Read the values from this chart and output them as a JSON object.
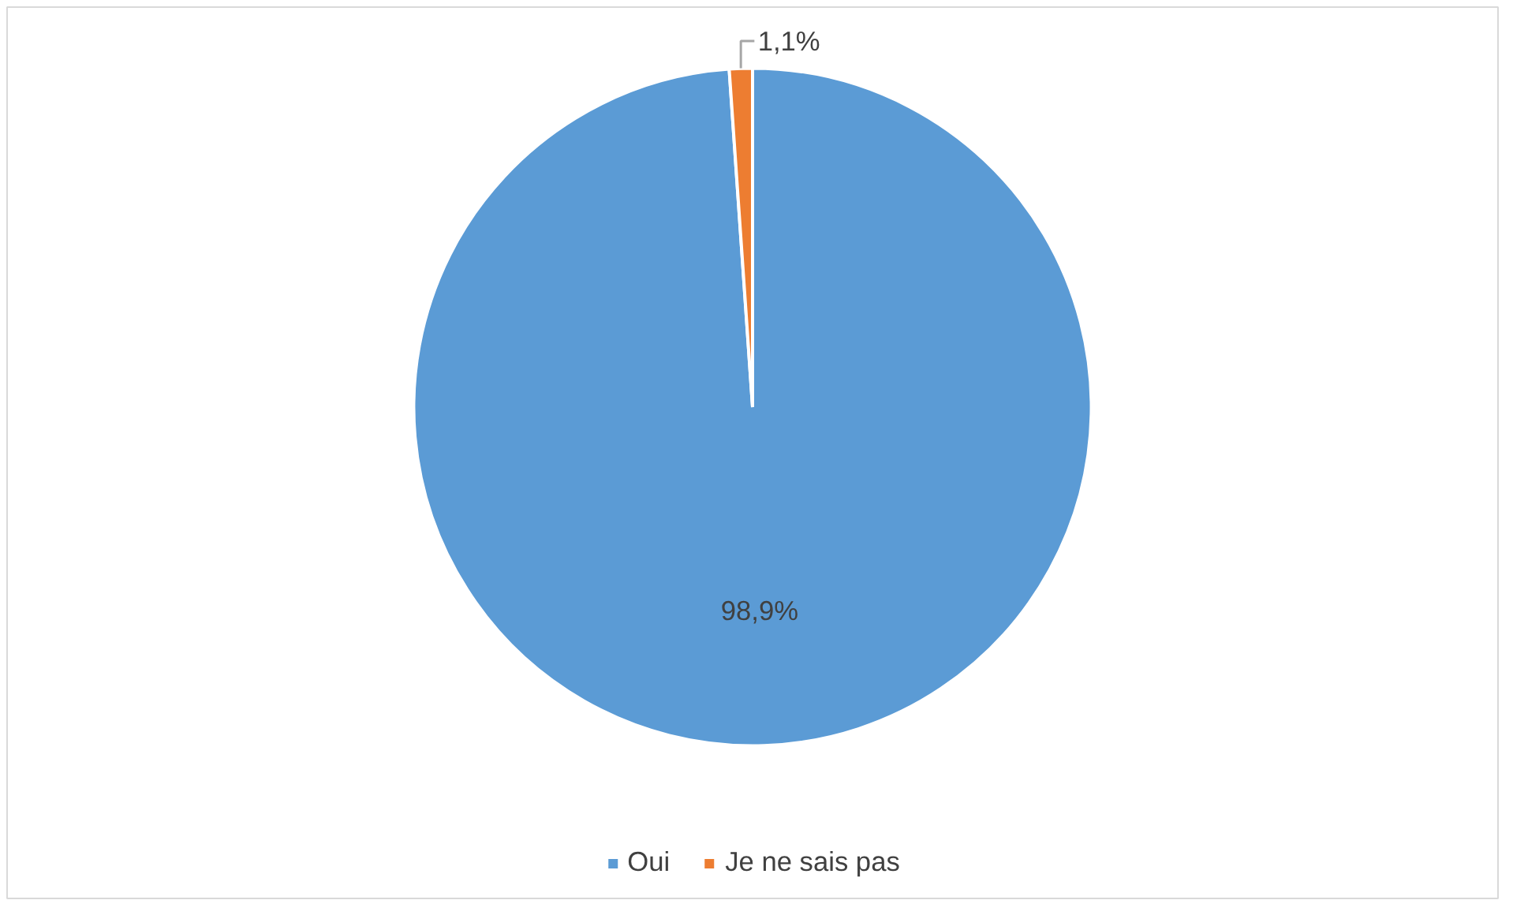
{
  "chart_data": {
    "type": "pie",
    "categories": [
      "Oui",
      "Je ne sais pas"
    ],
    "values": [
      98.9,
      1.1
    ],
    "colors": [
      "#5b9bd5",
      "#ed7d31"
    ],
    "value_labels": [
      "98,9%",
      "1,1%"
    ],
    "legend": "bottom"
  }
}
